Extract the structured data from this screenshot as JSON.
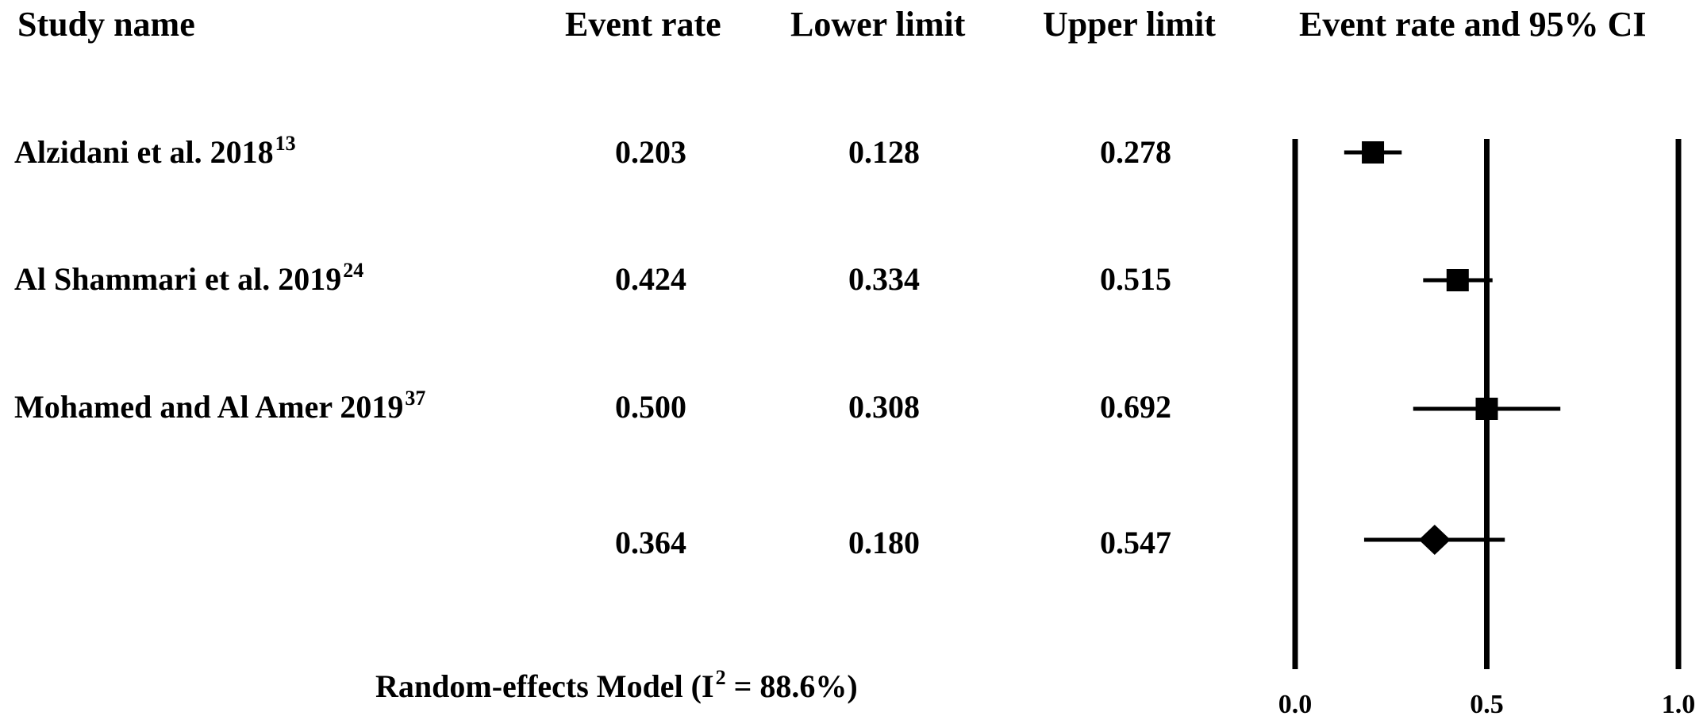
{
  "headers": {
    "study": "Study name",
    "event_rate": "Event rate",
    "lower": "Lower limit",
    "upper": "Upper limit",
    "plot": "Event rate and 95% CI"
  },
  "rows": [
    {
      "study": "Alzidani et al. 2018",
      "ref": "13",
      "event_rate": "0.203",
      "lower": "0.128",
      "upper": "0.278"
    },
    {
      "study": "Al Shammari et al. 2019",
      "ref": "24",
      "event_rate": "0.424",
      "lower": "0.334",
      "upper": "0.515"
    },
    {
      "study": "Mohamed and Al Amer 2019",
      "ref": "37",
      "event_rate": "0.500",
      "lower": "0.308",
      "upper": "0.692"
    }
  ],
  "summary": {
    "event_rate": "0.364",
    "lower": "0.180",
    "upper": "0.547",
    "model_label": "Random-effects Model (I",
    "model_sup": "2",
    "model_label_end": " = 88.6%)"
  },
  "chart_data": {
    "type": "forest",
    "title": "Event rate and 95% CI",
    "xlim": [
      0,
      1
    ],
    "ticks": [
      "0.0",
      "0.5",
      "1.0"
    ],
    "reference_lines": [
      0,
      0.5,
      1.0
    ],
    "studies": [
      {
        "name": "Alzidani et al. 2018",
        "estimate": 0.203,
        "lower": 0.128,
        "upper": 0.278,
        "marker": "square"
      },
      {
        "name": "Al Shammari et al. 2019",
        "estimate": 0.424,
        "lower": 0.334,
        "upper": 0.515,
        "marker": "square"
      },
      {
        "name": "Mohamed and Al Amer 2019",
        "estimate": 0.5,
        "lower": 0.308,
        "upper": 0.692,
        "marker": "square"
      }
    ],
    "pooled": {
      "name": "Random-effects Model",
      "estimate": 0.364,
      "lower": 0.18,
      "upper": 0.547,
      "marker": "diamond",
      "i2": "88.6%"
    }
  }
}
